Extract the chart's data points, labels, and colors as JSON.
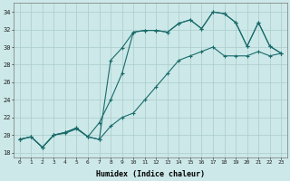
{
  "xlabel": "Humidex (Indice chaleur)",
  "bg_color": "#cce8e8",
  "line_color": "#1a6b6b",
  "grid_color": "#aacccc",
  "xlim": [
    -0.5,
    23.5
  ],
  "ylim": [
    17.5,
    35.0
  ],
  "xticks": [
    0,
    1,
    2,
    3,
    4,
    5,
    6,
    7,
    8,
    9,
    10,
    11,
    12,
    13,
    14,
    15,
    16,
    17,
    18,
    19,
    20,
    21,
    22,
    23
  ],
  "yticks": [
    18,
    20,
    22,
    24,
    26,
    28,
    30,
    32,
    34
  ],
  "line1_x": [
    0,
    1,
    2,
    3,
    4,
    5,
    6,
    7,
    8,
    9,
    10,
    11,
    12,
    13,
    14,
    15,
    16,
    17,
    18,
    19,
    20,
    21,
    22,
    23
  ],
  "line1_y": [
    19.5,
    19.8,
    18.6,
    20.0,
    20.2,
    20.7,
    19.8,
    19.5,
    28.5,
    29.9,
    31.7,
    31.9,
    31.9,
    31.7,
    32.7,
    33.1,
    32.1,
    34.0,
    33.8,
    32.8,
    30.1,
    32.8,
    30.1,
    29.3
  ],
  "line2_x": [
    0,
    1,
    2,
    3,
    4,
    5,
    6,
    7,
    8,
    9,
    10,
    11,
    12,
    13,
    14,
    15,
    16,
    17,
    18,
    19,
    20,
    21,
    22,
    23
  ],
  "line2_y": [
    19.5,
    19.8,
    18.6,
    20.0,
    20.3,
    20.8,
    19.8,
    21.4,
    24.0,
    27.0,
    31.7,
    31.9,
    31.9,
    31.7,
    32.7,
    33.1,
    32.1,
    34.0,
    33.8,
    32.8,
    30.1,
    32.8,
    30.1,
    29.3
  ],
  "line3_x": [
    0,
    1,
    2,
    3,
    4,
    5,
    6,
    7,
    8,
    9,
    10,
    11,
    12,
    13,
    14,
    15,
    16,
    17,
    18,
    19,
    20,
    21,
    22,
    23
  ],
  "line3_y": [
    19.5,
    19.8,
    18.6,
    20.0,
    20.3,
    20.8,
    19.8,
    19.5,
    21.0,
    22.0,
    22.5,
    24.0,
    25.5,
    27.0,
    28.5,
    29.0,
    29.5,
    30.0,
    29.0,
    29.0,
    29.0,
    29.5,
    29.0,
    29.3
  ]
}
